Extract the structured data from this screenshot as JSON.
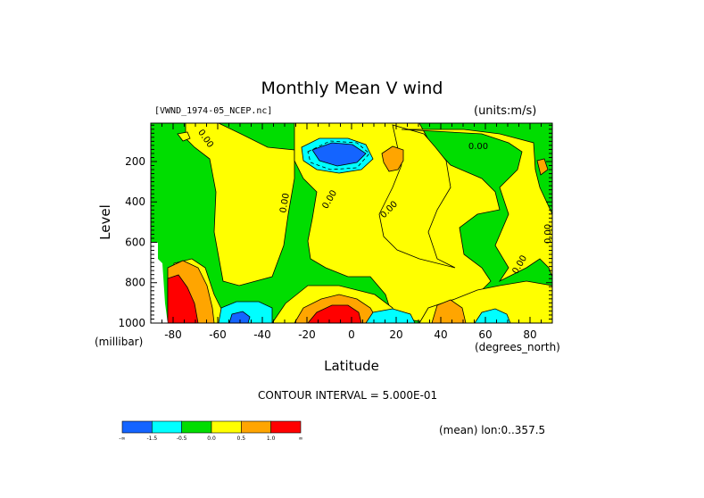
{
  "chart_data": {
    "type": "heatmap",
    "title": "Monthly Mean V wind",
    "dataset_label": "[VWND_1974-05_NCEP.nc]",
    "units_label": "(units:m/s)",
    "xlabel": "Latitude",
    "ylabel": "Level",
    "y_unit_label": "(millibar)",
    "x_unit_label": "(degrees_north)",
    "xlim": [
      -90,
      90
    ],
    "ylim": [
      1000,
      10
    ],
    "x_ticks": [
      -80,
      -60,
      -40,
      -20,
      0,
      20,
      40,
      60,
      80
    ],
    "y_ticks": [
      200,
      400,
      600,
      800,
      1000
    ],
    "contour_interval_text": "CONTOUR INTERVAL = 5.000E-01",
    "contour_labels": [
      "0.00",
      "0.00",
      "0.00",
      "0.00",
      "0.00",
      "0.00",
      "0.00"
    ],
    "mean_text": "(mean) lon:0..357.5",
    "colorbar": {
      "colors": [
        "#1464ff",
        "#00ffff",
        "#00dd00",
        "#ffff00",
        "#ffa500",
        "#ff0000"
      ],
      "tick_labels": [
        "-∞",
        "-1.5",
        "-0.5",
        "0.0",
        "0.5",
        "1.0",
        "∞"
      ]
    },
    "regions": [
      {
        "level": "negative",
        "description": "green"
      },
      {
        "level": "positive",
        "description": "yellow"
      }
    ]
  }
}
